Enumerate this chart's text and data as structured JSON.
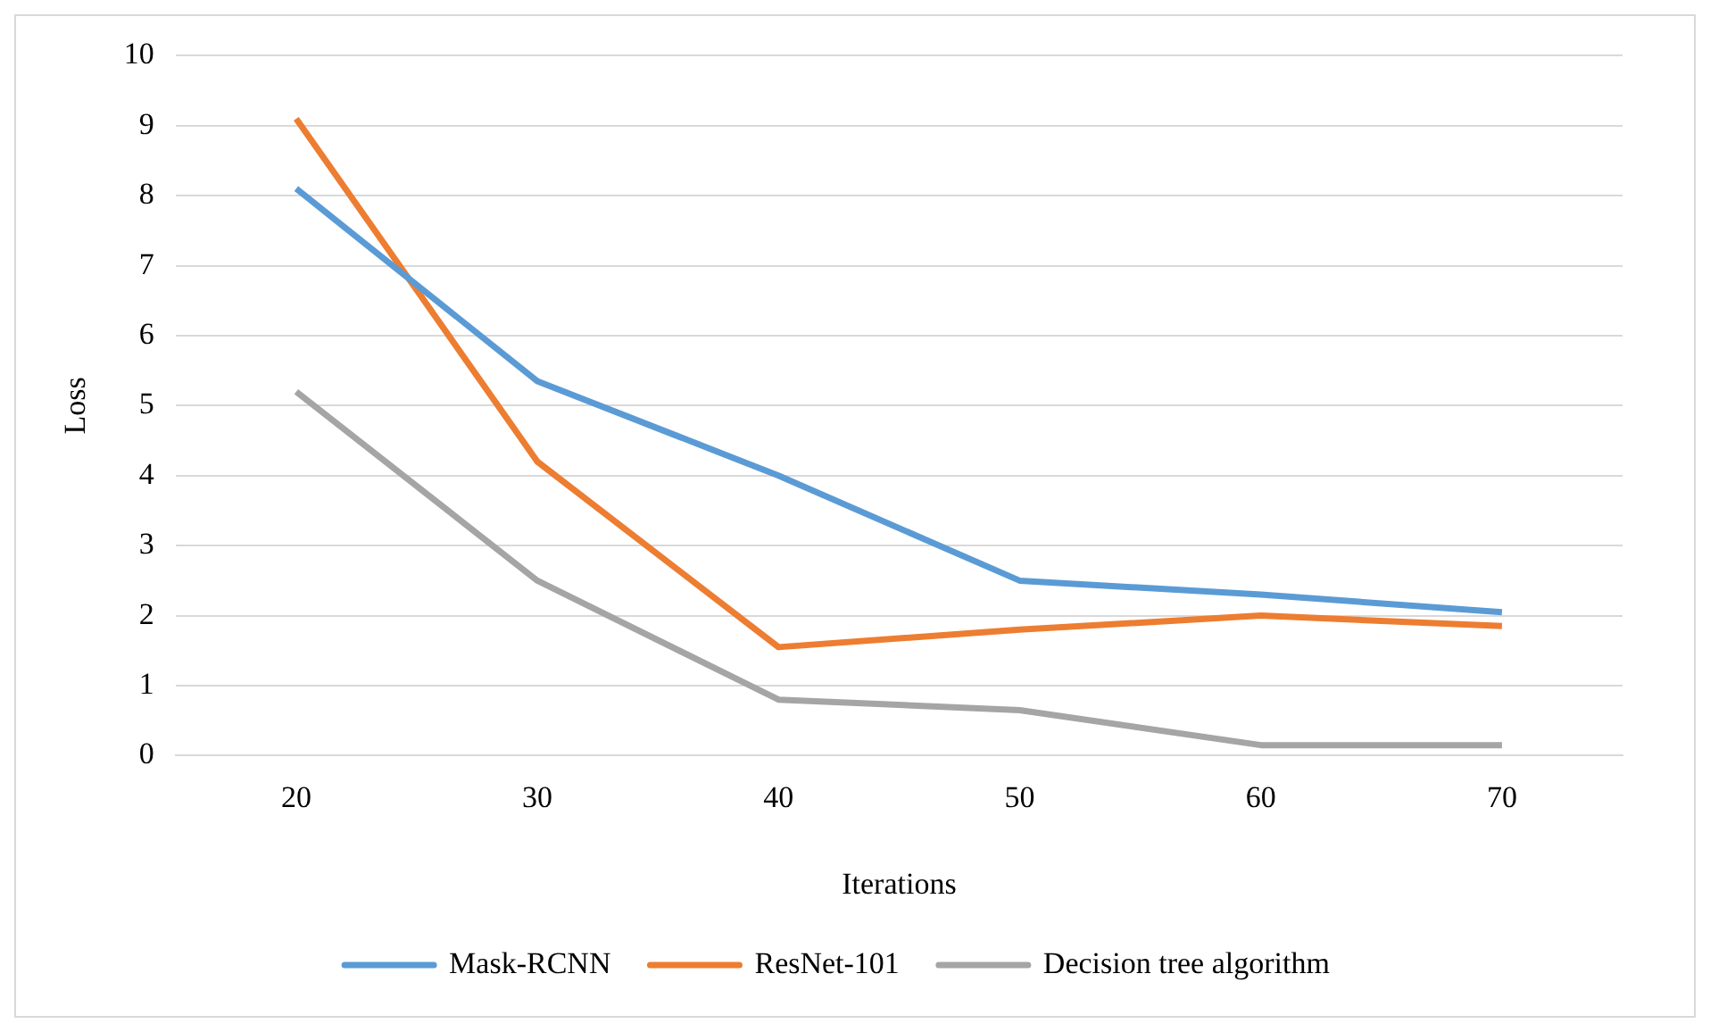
{
  "chart_data": {
    "type": "line",
    "xlabel": "Iterations",
    "ylabel": "Loss",
    "categories": [
      "20",
      "30",
      "40",
      "50",
      "60",
      "70"
    ],
    "series": [
      {
        "name": "Mask-RCNN",
        "color": "#5b9bd5",
        "values": [
          8.1,
          5.35,
          4.0,
          2.5,
          2.3,
          2.05
        ]
      },
      {
        "name": "ResNet-101",
        "color": "#ed7d31",
        "values": [
          9.1,
          4.2,
          1.55,
          1.8,
          2.0,
          1.85
        ]
      },
      {
        "name": "Decision tree algorithm",
        "color": "#a5a5a5",
        "values": [
          5.2,
          2.5,
          0.8,
          0.65,
          0.15,
          0.15
        ]
      }
    ],
    "ylim": [
      0,
      10
    ],
    "yticks": [
      0,
      1,
      2,
      3,
      4,
      5,
      6,
      7,
      8,
      9,
      10
    ],
    "grid": "y",
    "legend": "bottom",
    "marker": "none",
    "line_style": "solid"
  }
}
